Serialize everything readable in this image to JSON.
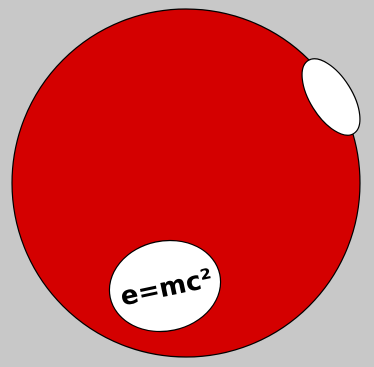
{
  "illustration": {
    "background_color": "#c8c8c8",
    "ball_color": "#d40000",
    "outline_color": "#000000",
    "highlight_color": "#ffffff",
    "label_fill_color": "#ffffff",
    "label_text": "e=mc²",
    "label_text_color": "#000000"
  }
}
